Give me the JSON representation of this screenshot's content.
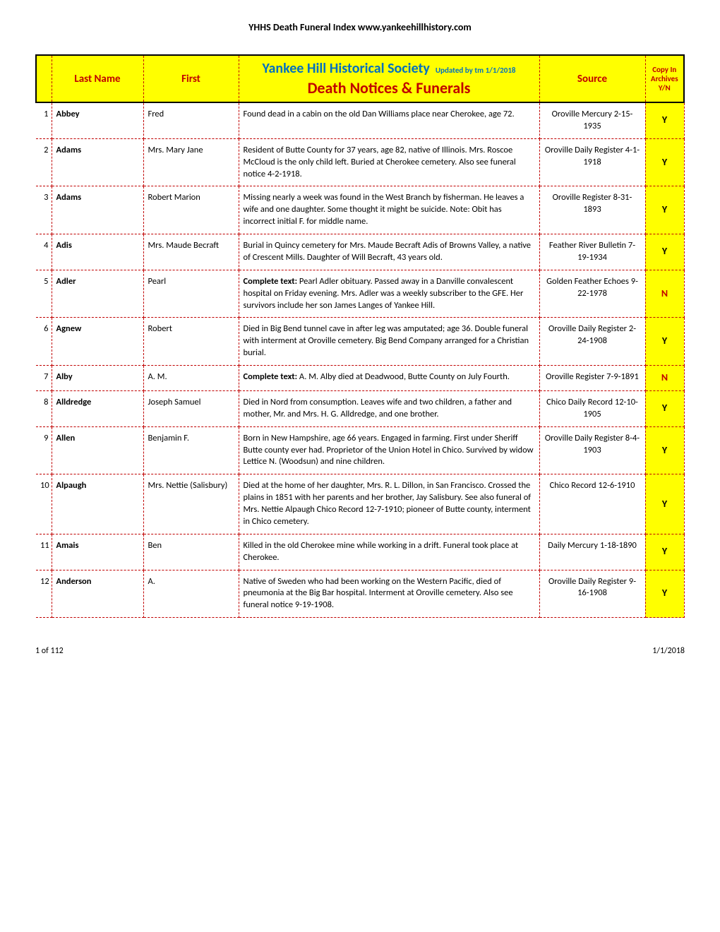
{
  "page_header": "YHHS Death Funeral Index   www.yankeehillhistory.com",
  "header": {
    "last_name": "Last Name",
    "first": "First",
    "society": "Yankee Hill Historical Society",
    "updated": "Updated by tm 1/1/2018",
    "title": "Death Notices & Funerals",
    "source": "Source",
    "archive_l1": "Copy In",
    "archive_l2": "Archives",
    "archive_l3": "Y/N"
  },
  "rows": [
    {
      "n": "1",
      "last": "Abbey",
      "first": "Fred",
      "desc_prefix": "",
      "desc": "Found dead in a cabin on the old Dan Williams place near Cherokee, age 72.",
      "source": "Oroville Mercury 2-15-1935",
      "archive": "Y"
    },
    {
      "n": "2",
      "last": "Adams",
      "first": "Mrs. Mary Jane",
      "desc_prefix": "",
      "desc": "Resident of Butte County for 37 years, age 82, native of Illinois. Mrs. Roscoe McCloud is the only child left. Buried at Cherokee cemetery. Also see funeral notice 4-2-1918.",
      "source": "Oroville Daily Register 4-1-1918",
      "archive": "Y"
    },
    {
      "n": "3",
      "last": "Adams",
      "first": "Robert Marion",
      "desc_prefix": "",
      "desc": "Missing nearly a week was found in the West Branch by fisherman. He leaves a wife and one daughter. Some thought it might be suicide. Note: Obit has incorrect initial F. for middle name.",
      "source": "Oroville Register 8-31-1893",
      "archive": "Y"
    },
    {
      "n": "4",
      "last": "Adis",
      "first": "Mrs. Maude Becraft",
      "desc_prefix": "",
      "desc": "Burial in Quincy cemetery for Mrs. Maude Becraft Adis of Browns Valley, a native of Crescent Mills. Daughter of Will Becraft, 43 years old.",
      "source": "Feather River Bulletin 7-19-1934",
      "archive": "Y"
    },
    {
      "n": "5",
      "last": "Adler",
      "first": "Pearl",
      "desc_prefix": "Complete text: ",
      "desc": "Pearl Adler obituary. Passed away in a Danville convalescent hospital on Friday evening. Mrs. Adler was a weekly subscriber to the GFE. Her survivors include her son James Langes of Yankee Hill.",
      "source": "Golden Feather Echoes 9-22-1978",
      "archive": "N"
    },
    {
      "n": "6",
      "last": "Agnew",
      "first": "Robert",
      "desc_prefix": "",
      "desc": "Died in Big Bend tunnel cave in after leg was amputated; age 36. Double funeral with interment at Oroville cemetery. Big Bend Company arranged for a Christian burial.",
      "source": "Oroville Daily Register 2-24-1908",
      "archive": "Y"
    },
    {
      "n": "7",
      "last": "Alby",
      "first": "A. M.",
      "desc_prefix": "Complete text: ",
      "desc": "A. M. Alby died at Deadwood, Butte County on July Fourth.",
      "source": "Oroville Register 7-9-1891",
      "archive": "N"
    },
    {
      "n": "8",
      "last": "Alldredge",
      "first": "Joseph Samuel",
      "desc_prefix": "",
      "desc": "Died in Nord from consumption. Leaves wife and two children, a father and mother, Mr. and Mrs. H. G. Alldredge, and one brother.",
      "source": "Chico Daily Record 12-10-1905",
      "archive": "Y"
    },
    {
      "n": "9",
      "last": "Allen",
      "first": "Benjamin F.",
      "desc_prefix": "",
      "desc": "Born in New Hampshire, age 66 years. Engaged in farming. First under Sheriff Butte county ever had. Proprietor of the Union Hotel in Chico. Survived by widow Lettice N. (Woodsun) and nine children.",
      "source": "Oroville Daily Register 8-4-1903",
      "archive": "Y"
    },
    {
      "n": "10",
      "last": "Alpaugh",
      "first": "Mrs. Nettie (Salisbury)",
      "desc_prefix": "",
      "desc": "Died at the home of her daughter, Mrs. R. L. Dillon, in San Francisco. Crossed the plains in 1851 with her parents and her brother, Jay Salisbury. See also funeral of Mrs. Nettie Alpaugh Chico Record 12-7-1910; pioneer of Butte county, interment in Chico cemetery.",
      "source": "Chico Record 12-6-1910",
      "archive": "Y"
    },
    {
      "n": "11",
      "last": "Amais",
      "first": "Ben",
      "desc_prefix": "",
      "desc": "Killed in the old Cherokee mine while working in a drift. Funeral took place at Cherokee.",
      "source": "Daily Mercury 1-18-1890",
      "archive": "Y"
    },
    {
      "n": "12",
      "last": "Anderson",
      "first": "A.",
      "desc_prefix": "",
      "desc": "Native of Sweden who had been working on the Western Pacific, died of pneumonia at the Big Bar hospital. Interment at Oroville cemetery. Also see funeral notice 9-19-1908.",
      "source": "Oroville Daily Register 9-16-1908",
      "archive": "Y"
    }
  ],
  "footer": {
    "page": "1 of 112",
    "date": "1/1/2018"
  },
  "colors": {
    "yellow": "#ffff00",
    "red": "#c00000",
    "blue": "#0070c0"
  }
}
